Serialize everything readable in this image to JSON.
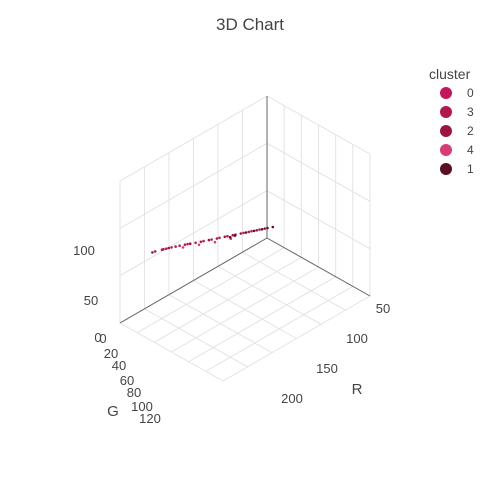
{
  "chart_data": {
    "type": "scatter",
    "subtype": "3d",
    "title": "3D Chart",
    "axes": {
      "x": {
        "label": "R",
        "ticks": [
          "50",
          "100",
          "150",
          "200"
        ]
      },
      "y": {
        "label": "G",
        "ticks": [
          "0",
          "20",
          "40",
          "60",
          "80",
          "100",
          "120"
        ]
      },
      "z": {
        "label": "",
        "ticks": [
          "0",
          "50",
          "100"
        ]
      }
    },
    "legend": {
      "title": "cluster",
      "placement": "top-right",
      "entries": [
        {
          "label": "0",
          "color": "#c2185b"
        },
        {
          "label": "3",
          "color": "#b0194e"
        },
        {
          "label": "2",
          "color": "#9c1445"
        },
        {
          "label": "4",
          "color": "#d63b7a"
        },
        {
          "label": "1",
          "color": "#5a0f22"
        }
      ]
    },
    "series": [
      {
        "name": "0",
        "color": "#c2185b",
        "points": [
          {
            "R": 45,
            "G": 55,
            "B": 95
          },
          {
            "R": 48,
            "G": 58,
            "B": 97
          },
          {
            "R": 52,
            "G": 60,
            "B": 99
          },
          {
            "R": 58,
            "G": 62,
            "B": 101
          },
          {
            "R": 64,
            "G": 64,
            "B": 103
          },
          {
            "R": 70,
            "G": 66,
            "B": 104
          },
          {
            "R": 76,
            "G": 68,
            "B": 106
          },
          {
            "R": 82,
            "G": 70,
            "B": 108
          },
          {
            "R": 88,
            "G": 71,
            "B": 110
          },
          {
            "R": 94,
            "G": 73,
            "B": 112
          },
          {
            "R": 100,
            "G": 75,
            "B": 114
          },
          {
            "R": 106,
            "G": 77,
            "B": 116
          },
          {
            "R": 112,
            "G": 79,
            "B": 118
          },
          {
            "R": 118,
            "G": 81,
            "B": 120
          }
        ]
      },
      {
        "name": "3",
        "color": "#b0194e",
        "points": [
          {
            "R": 40,
            "G": 52,
            "B": 92
          },
          {
            "R": 46,
            "G": 56,
            "B": 96
          },
          {
            "R": 55,
            "G": 61,
            "B": 100
          },
          {
            "R": 62,
            "G": 63,
            "B": 102
          },
          {
            "R": 74,
            "G": 67,
            "B": 105
          },
          {
            "R": 86,
            "G": 71,
            "B": 109
          },
          {
            "R": 98,
            "G": 74,
            "B": 113
          },
          {
            "R": 110,
            "G": 78,
            "B": 117
          }
        ]
      },
      {
        "name": "2",
        "color": "#9c1445",
        "points": [
          {
            "R": 38,
            "G": 50,
            "B": 90
          },
          {
            "R": 50,
            "G": 58,
            "B": 98
          },
          {
            "R": 66,
            "G": 64,
            "B": 103
          },
          {
            "R": 80,
            "G": 69,
            "B": 107
          },
          {
            "R": 92,
            "G": 72,
            "B": 111
          },
          {
            "R": 104,
            "G": 76,
            "B": 115
          },
          {
            "R": 116,
            "G": 80,
            "B": 119
          },
          {
            "R": 122,
            "G": 82,
            "B": 121
          }
        ]
      },
      {
        "name": "4",
        "color": "#d63b7a",
        "points": [
          {
            "R": 60,
            "G": 70,
            "B": 96
          },
          {
            "R": 72,
            "G": 74,
            "B": 98
          },
          {
            "R": 84,
            "G": 78,
            "B": 100
          },
          {
            "R": 96,
            "G": 80,
            "B": 104
          }
        ]
      },
      {
        "name": "1",
        "color": "#5a0f22",
        "points": [
          {
            "R": 100,
            "G": 70,
            "B": 110
          },
          {
            "R": 108,
            "G": 76,
            "B": 116
          },
          {
            "R": 114,
            "G": 79,
            "B": 118
          },
          {
            "R": 120,
            "G": 81,
            "B": 120
          },
          {
            "R": 124,
            "G": 83,
            "B": 122
          },
          {
            "R": 128,
            "G": 84,
            "B": 123
          },
          {
            "R": 96,
            "G": 74,
            "B": 108
          }
        ]
      }
    ]
  }
}
